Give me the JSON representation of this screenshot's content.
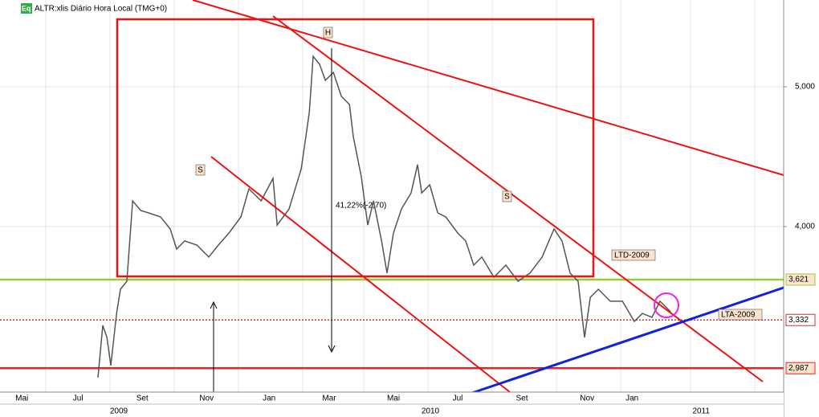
{
  "chart_data": {
    "type": "line",
    "title": "ALTR:xlis Diário Hora Local (TMG+0)",
    "icon": "Eq",
    "color": "#555555",
    "x": [
      3.05,
      3.2,
      3.33,
      3.45,
      3.63,
      3.75,
      3.95,
      4.13,
      4.38,
      4.63,
      5,
      5.3,
      5.5,
      5.75,
      6.13,
      6.5,
      6.8,
      7.13,
      7.5,
      7.75,
      8.13,
      8.5,
      8.63,
      9,
      9.38,
      9.63,
      9.75,
      9.95,
      10.13,
      10.38,
      10.63,
      10.88,
      11,
      11.25,
      11.45,
      11.63,
      11.88,
      12.05,
      12.25,
      12.5,
      12.8,
      13,
      13.13,
      13.38,
      13.63,
      13.88,
      14.25,
      14.5,
      14.75,
      15,
      15.38,
      15.75,
      16.13,
      16.5,
      16.88,
      17.25,
      17.5,
      17.75,
      18,
      18.2,
      18.38,
      18.63,
      19,
      19.38,
      19.75,
      20,
      20.3,
      20.55,
      20.88
    ],
    "values": [
      2920,
      3293,
      3207,
      3006,
      3379,
      3552,
      3609,
      4184,
      4115,
      4098,
      4069,
      3983,
      3839,
      3897,
      3868,
      3782,
      3868,
      3954,
      4069,
      4270,
      4184,
      4345,
      4011,
      4126,
      4414,
      4816,
      5218,
      5161,
      5046,
      5103,
      4931,
      4874,
      4644,
      4356,
      4011,
      4184,
      3897,
      3667,
      3954,
      4126,
      4241,
      4443,
      4241,
      4299,
      4098,
      4069,
      3954,
      3897,
      3724,
      3782,
      3638,
      3724,
      3609,
      3667,
      3782,
      3983,
      3897,
      3667,
      3609,
      3207,
      3494,
      3552,
      3466,
      3466,
      3322,
      3379,
      3351,
      3466,
      3391
    ],
    "xlim": [
      0,
      24.4
    ],
    "ylim": [
      2816,
      5621
    ],
    "yticks": [
      {
        "value": 4000,
        "label": "4,000"
      },
      {
        "value": 5000,
        "label": "5,000"
      }
    ],
    "xticks": [
      {
        "value": 0.68,
        "label": "Mai"
      },
      {
        "value": 2.43,
        "label": "Jul"
      },
      {
        "value": 4.43,
        "label": "Set"
      },
      {
        "value": 6.43,
        "label": "Nov"
      },
      {
        "value": 8.38,
        "label": "Jan"
      },
      {
        "value": 10.25,
        "label": "Mar"
      },
      {
        "value": 12.25,
        "label": "Mai"
      },
      {
        "value": 14.25,
        "label": "Jul"
      },
      {
        "value": 16.25,
        "label": "Set"
      },
      {
        "value": 18.28,
        "label": "Nov"
      },
      {
        "value": 19.68,
        "label": "Jan"
      }
    ],
    "years": [
      {
        "value": 3.7,
        "label": "2009"
      },
      {
        "value": 13.4,
        "label": "2010"
      },
      {
        "value": 21.83,
        "label": "2011"
      }
    ],
    "levels": [
      {
        "value": 3621,
        "label": "3,621",
        "color": "#99cc33",
        "style": "solid"
      },
      {
        "value": 3332,
        "label": "3,332",
        "color": "#cc3333",
        "style": "dotted"
      },
      {
        "value": 2987,
        "label": "2,987",
        "color": "#ee2222",
        "style": "solid"
      }
    ],
    "annotations": {
      "h": "H",
      "s1": "S",
      "s2": "S",
      "ltd": "LTD-2009",
      "lta": "LTA-2009",
      "fib": "41,22%(-2,70)"
    }
  }
}
